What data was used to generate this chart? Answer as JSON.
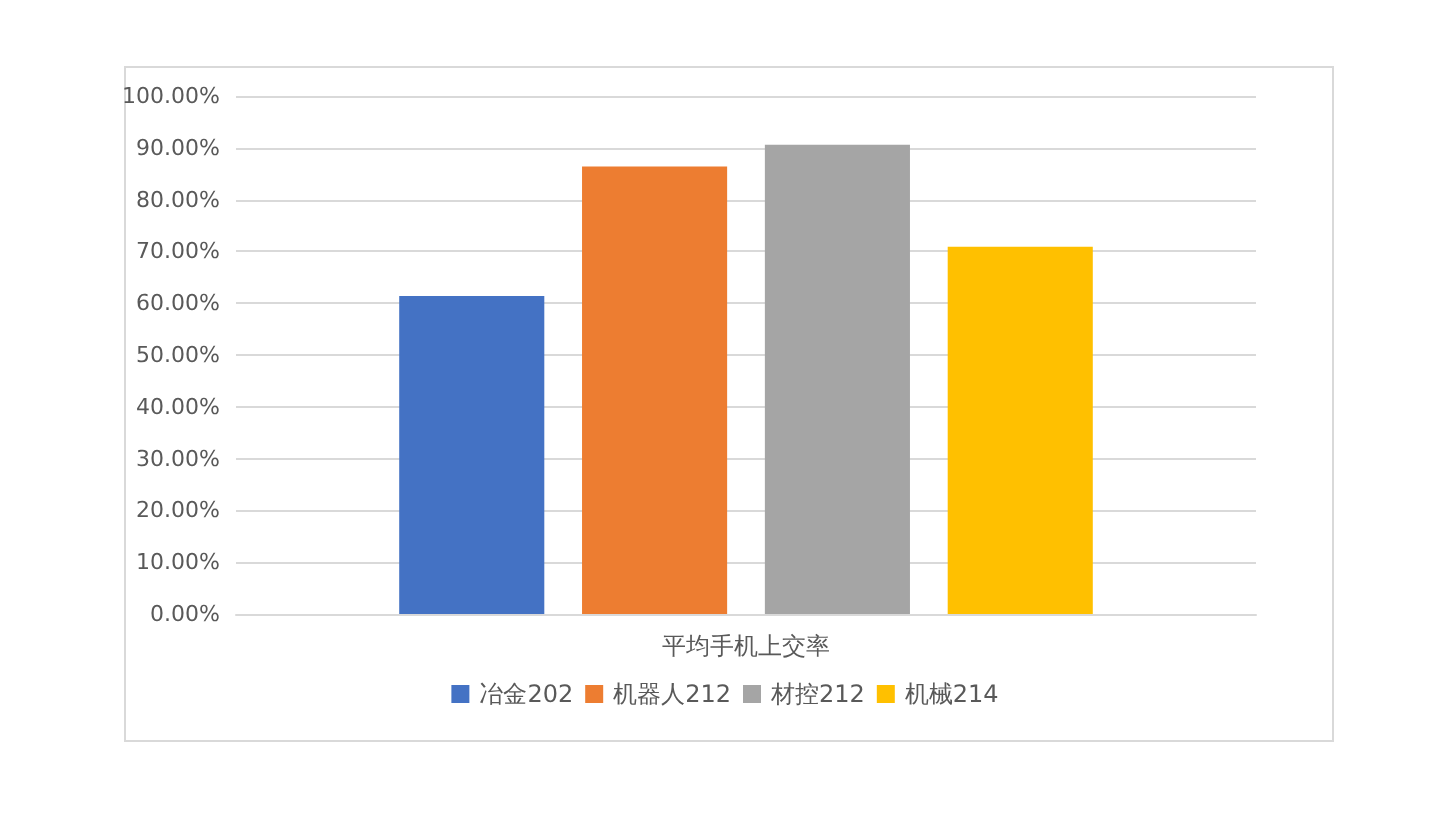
{
  "chart_data": {
    "type": "bar",
    "categories": [
      "平均手机上交率"
    ],
    "series": [
      {
        "name": "冶金202",
        "color": "#4472c4",
        "values": [
          61.4
        ]
      },
      {
        "name": "机器人212",
        "color": "#ed7d31",
        "values": [
          86.4
        ]
      },
      {
        "name": "材控212",
        "color": "#a5a5a5",
        "values": [
          90.6
        ]
      },
      {
        "name": "机械214",
        "color": "#ffc000",
        "values": [
          70.9
        ]
      }
    ],
    "ylim": [
      0,
      100
    ],
    "yticks": [
      {
        "value": 0,
        "label": "0.00%"
      },
      {
        "value": 10,
        "label": "10.00%"
      },
      {
        "value": 20,
        "label": "20.00%"
      },
      {
        "value": 30,
        "label": "30.00%"
      },
      {
        "value": 40,
        "label": "40.00%"
      },
      {
        "value": 50,
        "label": "50.00%"
      },
      {
        "value": 60,
        "label": "60.00%"
      },
      {
        "value": 70,
        "label": "70.00%"
      },
      {
        "value": 80,
        "label": "80.00%"
      },
      {
        "value": 90,
        "label": "90.00%"
      },
      {
        "value": 100,
        "label": "100.00%"
      }
    ],
    "grid": "y",
    "legend": "bottom"
  }
}
